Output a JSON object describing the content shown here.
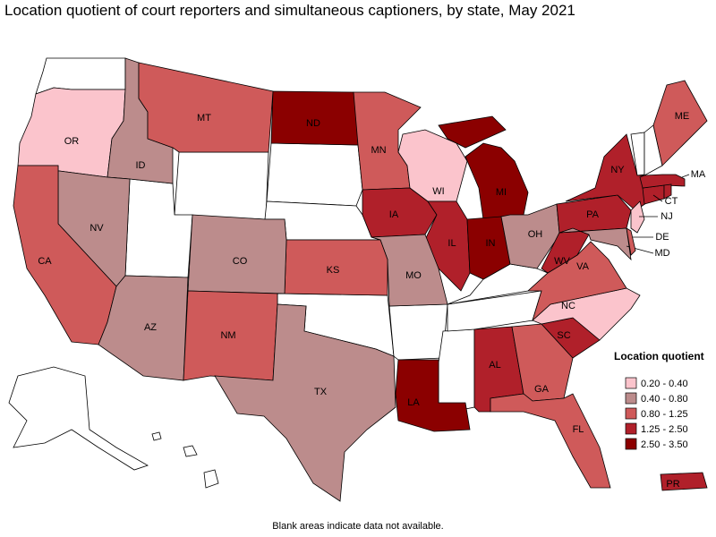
{
  "header": {
    "title": "Location quotient of court reporters and simultaneous captioners, by state, May 2021"
  },
  "legend": {
    "title": "Location quotient",
    "items": [
      {
        "label": "0.20 - 0.40",
        "color": "#fbc4cc"
      },
      {
        "label": "0.40 - 0.80",
        "color": "#bc8c8c"
      },
      {
        "label": "0.80 - 1.25",
        "color": "#cf5a5a"
      },
      {
        "label": "1.25 - 2.50",
        "color": "#b0202a"
      },
      {
        "label": "2.50 - 3.50",
        "color": "#8b0000"
      }
    ]
  },
  "states": [
    {
      "label": "OR",
      "color": "#fbc4cc"
    },
    {
      "label": "ID",
      "color": "#bc8c8c"
    },
    {
      "label": "MT",
      "color": "#cf5a5a"
    },
    {
      "label": "ND",
      "color": "#8b0000"
    },
    {
      "label": "MN",
      "color": "#cf5a5a"
    },
    {
      "label": "IA",
      "color": "#b0202a"
    },
    {
      "label": "WI",
      "color": "#fbc4cc"
    },
    {
      "label": "MI",
      "color": "#8b0000"
    },
    {
      "label": "IL",
      "color": "#b0202a"
    },
    {
      "label": "IN",
      "color": "#8b0000"
    },
    {
      "label": "OH",
      "color": "#bc8c8c"
    },
    {
      "label": "MO",
      "color": "#bc8c8c"
    },
    {
      "label": "KS",
      "color": "#cf5a5a"
    },
    {
      "label": "CO",
      "color": "#bc8c8c"
    },
    {
      "label": "NV",
      "color": "#bc8c8c"
    },
    {
      "label": "CA",
      "color": "#cf5a5a"
    },
    {
      "label": "AZ",
      "color": "#bc8c8c"
    },
    {
      "label": "NM",
      "color": "#cf5a5a"
    },
    {
      "label": "TX",
      "color": "#bc8c8c"
    },
    {
      "label": "LA",
      "color": "#8b0000"
    },
    {
      "label": "AL",
      "color": "#b0202a"
    },
    {
      "label": "GA",
      "color": "#cf5a5a"
    },
    {
      "label": "FL",
      "color": "#cf5a5a"
    },
    {
      "label": "SC",
      "color": "#b0202a"
    },
    {
      "label": "NC",
      "color": "#fbc4cc"
    },
    {
      "label": "VA",
      "color": "#cf5a5a"
    },
    {
      "label": "WV",
      "color": "#b0202a"
    },
    {
      "label": "PA",
      "color": "#b0202a"
    },
    {
      "label": "NY",
      "color": "#b0202a"
    },
    {
      "label": "MD",
      "color": "#bc8c8c"
    },
    {
      "label": "DE",
      "color": "#cf5a5a"
    },
    {
      "label": "NJ",
      "color": "#fbc4cc"
    },
    {
      "label": "CT",
      "color": "#b0202a"
    },
    {
      "label": "MA",
      "color": "#b0202a"
    },
    {
      "label": "ME",
      "color": "#cf5a5a"
    },
    {
      "label": "PR",
      "color": "#b0202a"
    }
  ],
  "footnote": "Blank areas indicate data not available."
}
